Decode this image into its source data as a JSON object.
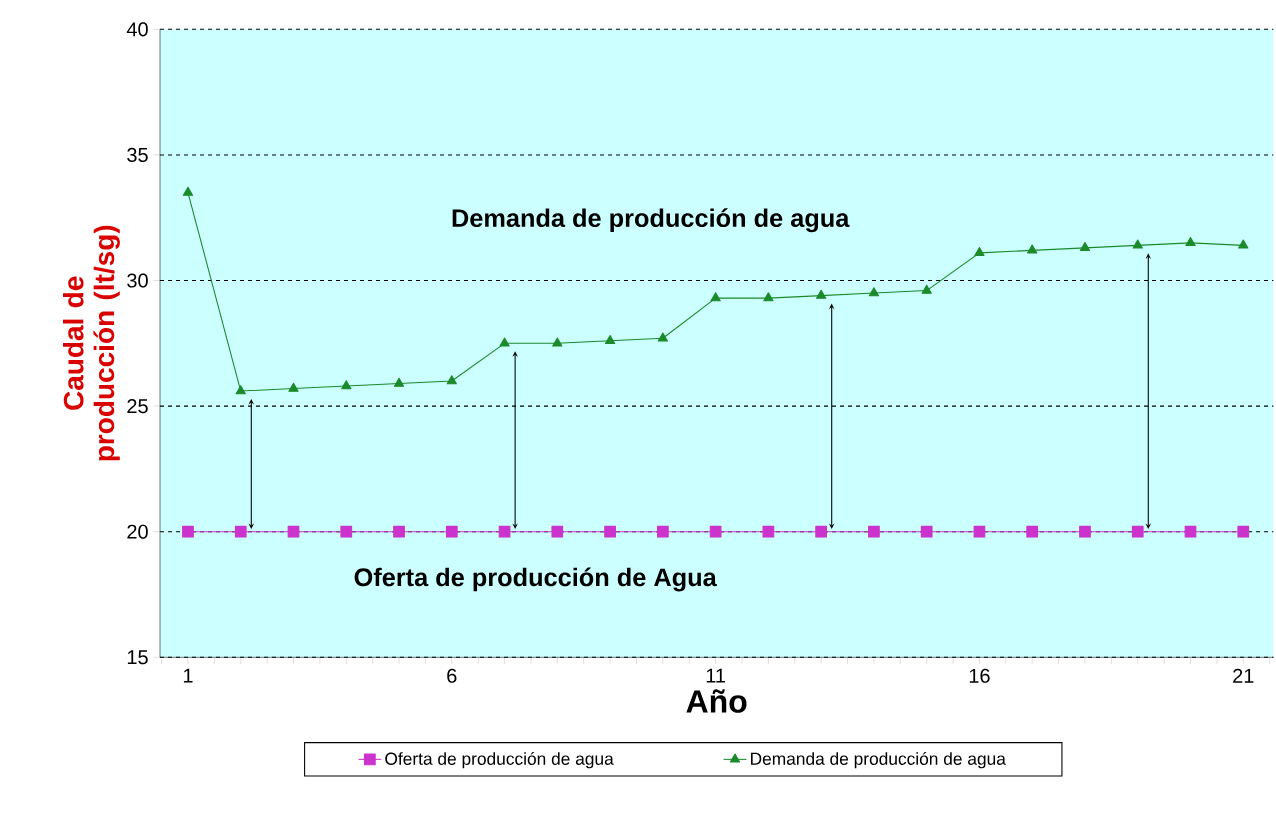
{
  "chart_data": {
    "type": "line",
    "xlabel": "Año",
    "ylabel": "Caudal de producción (lt/sg)",
    "categories": [
      "1",
      null,
      null,
      null,
      null,
      "6",
      null,
      null,
      null,
      null,
      "11",
      null,
      null,
      null,
      null,
      "16",
      null,
      null,
      null,
      null,
      "21"
    ],
    "series": [
      {
        "name": "Oferta de producción de agua",
        "color": "#cc33cc",
        "marker": "square",
        "values": [
          20,
          20,
          20,
          20,
          20,
          20,
          20,
          20,
          20,
          20,
          20,
          20,
          20,
          20,
          20,
          20,
          20,
          20,
          20,
          20,
          20
        ]
      },
      {
        "name": "Demanda de producción de agua",
        "color": "#1a8a2a",
        "marker": "triangle",
        "values": [
          33.5,
          25.6,
          25.7,
          25.8,
          25.9,
          26.0,
          27.5,
          27.5,
          27.6,
          27.7,
          29.3,
          29.3,
          29.4,
          29.5,
          29.6,
          31.1,
          31.2,
          31.3,
          31.4,
          31.5,
          31.4
        ]
      }
    ],
    "ylim": [
      15,
      40
    ],
    "yticks": [
      15,
      20,
      25,
      30,
      35,
      40
    ],
    "grid": "y",
    "legend": "bottom",
    "line_style": "solid",
    "annotations": [
      "Demanda de producción de agua",
      "Oferta de producción de Agua"
    ]
  }
}
